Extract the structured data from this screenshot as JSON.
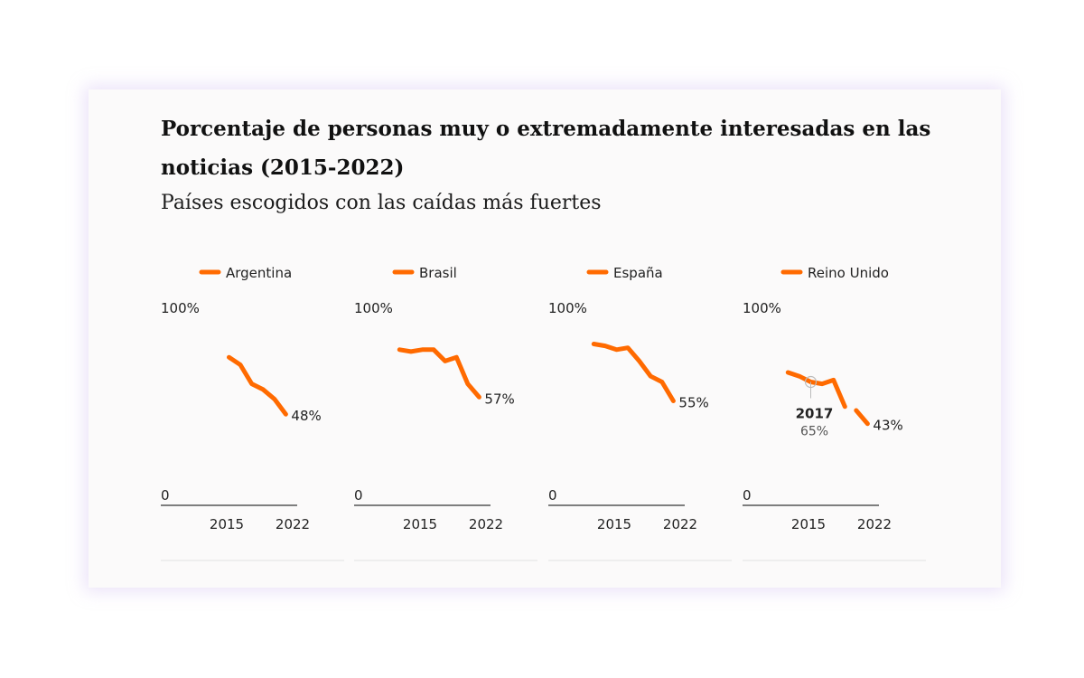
{
  "title": "Porcentaje de personas muy o extremadamente interesadas en las noticias (2015-2022)",
  "subtitle": "Países escogidos con las caídas más fuertes",
  "colors": {
    "line": "#ff6a00",
    "axis": "#555555",
    "divider": "#e2e2e2"
  },
  "chart_data": [
    {
      "type": "line",
      "legend": "Argentina",
      "y_top_label": "100%",
      "y_bottom_label": "0",
      "x_tick_labels": [
        "2015",
        "2022"
      ],
      "ylim": [
        0,
        100
      ],
      "xlim": [
        2011,
        2023
      ],
      "x": [
        2017,
        2018,
        2019,
        2020,
        2021,
        2022
      ],
      "y": [
        78,
        74,
        64,
        61,
        56,
        48
      ],
      "end_label": "48%"
    },
    {
      "type": "line",
      "legend": "Brasil",
      "y_top_label": "100%",
      "y_bottom_label": "0",
      "x_tick_labels": [
        "2015",
        "2022"
      ],
      "ylim": [
        0,
        100
      ],
      "xlim": [
        2011,
        2023
      ],
      "x": [
        2015,
        2016,
        2017,
        2018,
        2019,
        2020,
        2021,
        2022
      ],
      "y": [
        82,
        81,
        82,
        82,
        76,
        78,
        64,
        57
      ],
      "end_label": "57%"
    },
    {
      "type": "line",
      "legend": "España",
      "y_top_label": "100%",
      "y_bottom_label": "0",
      "x_tick_labels": [
        "2015",
        "2022"
      ],
      "ylim": [
        0,
        100
      ],
      "xlim": [
        2011,
        2023
      ],
      "x": [
        2015,
        2016,
        2017,
        2018,
        2019,
        2020,
        2021,
        2022
      ],
      "y": [
        85,
        84,
        82,
        83,
        76,
        68,
        65,
        55
      ],
      "end_label": "55%"
    },
    {
      "type": "line",
      "legend": "Reino Unido",
      "y_top_label": "100%",
      "y_bottom_label": "0",
      "x_tick_labels": [
        "2015",
        "2022"
      ],
      "ylim": [
        0,
        100
      ],
      "xlim": [
        2011,
        2023
      ],
      "segments": [
        {
          "x": [
            2015,
            2016,
            2017,
            2018,
            2019,
            2020
          ],
          "y": [
            70,
            68,
            65,
            64,
            66,
            52
          ]
        },
        {
          "x": [
            2021,
            2022
          ],
          "y": [
            50,
            43
          ]
        }
      ],
      "end_label": "43%",
      "tooltip": {
        "year": "2017",
        "value": "65%"
      }
    }
  ]
}
